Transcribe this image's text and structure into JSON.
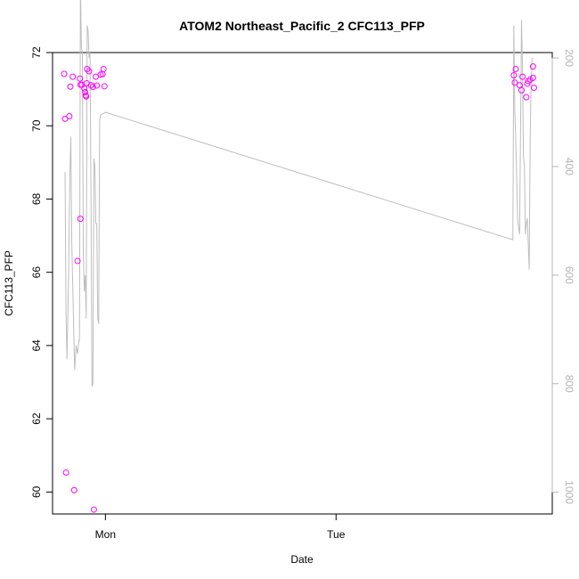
{
  "chart_data": {
    "type": "scatter",
    "title": "ATOM2 Northeast_Pacific_2 CFC113_PFP",
    "xlabel": "Date",
    "ylabel": "CFC113_PFP",
    "x_unit": "days since Sunday 00:00",
    "xlim": [
      0.7708,
      2.9375
    ],
    "ylim": [
      59.4,
      72.0
    ],
    "x_ticks": [
      {
        "value": 1.0,
        "label": "Mon"
      },
      {
        "value": 2.0,
        "label": "Tue"
      }
    ],
    "y_ticks": [
      60,
      62,
      64,
      66,
      68,
      70,
      72
    ],
    "secondary_axis": {
      "side": "right",
      "color": "#b4b4b4",
      "reversed": true,
      "ylim": [
        1040,
        190
      ],
      "ticks": [
        200,
        400,
        600,
        800,
        1000
      ]
    },
    "grid": false,
    "series": [
      {
        "kind": "points",
        "color": "#ff00ff",
        "marker": "open-circle",
        "points": [
          [
            0.8208,
            71.42
          ],
          [
            0.825,
            70.19
          ],
          [
            0.8292,
            60.53
          ],
          [
            0.8437,
            70.26
          ],
          [
            0.8479,
            71.07
          ],
          [
            0.8583,
            71.34
          ],
          [
            0.8646,
            60.05
          ],
          [
            0.8792,
            66.31
          ],
          [
            0.8917,
            67.46
          ],
          [
            0.8896,
            71.29
          ],
          [
            0.8917,
            71.12
          ],
          [
            0.8979,
            71.12
          ],
          [
            0.9083,
            71.02
          ],
          [
            0.9125,
            70.92
          ],
          [
            0.9146,
            70.83
          ],
          [
            0.9167,
            70.8
          ],
          [
            0.9187,
            71.16
          ],
          [
            0.9208,
            71.55
          ],
          [
            0.9292,
            71.49
          ],
          [
            0.9375,
            71.11
          ],
          [
            0.9458,
            71.06
          ],
          [
            0.95,
            59.52
          ],
          [
            0.9583,
            71.34
          ],
          [
            0.9625,
            71.1
          ],
          [
            0.9792,
            71.4
          ],
          [
            0.9875,
            71.41
          ],
          [
            0.9917,
            71.55
          ],
          [
            0.9958,
            71.08
          ],
          [
            2.7708,
            71.38
          ],
          [
            2.775,
            71.18
          ],
          [
            2.7792,
            71.55
          ],
          [
            2.7958,
            71.11
          ],
          [
            2.8042,
            70.97
          ],
          [
            2.8083,
            71.34
          ],
          [
            2.825,
            70.78
          ],
          [
            2.8292,
            71.15
          ],
          [
            2.8333,
            71.22
          ],
          [
            2.8417,
            71.26
          ],
          [
            2.8542,
            71.31
          ],
          [
            2.8542,
            71.62
          ],
          [
            2.8583,
            71.04
          ]
        ]
      },
      {
        "kind": "line",
        "color": "#bebebe",
        "axis": "secondary",
        "points": [
          [
            0.825,
            410
          ],
          [
            0.8292,
            670
          ],
          [
            0.8333,
            755
          ],
          [
            0.8396,
            620
          ],
          [
            0.8458,
            420
          ],
          [
            0.85,
            345
          ],
          [
            0.8542,
            540
          ],
          [
            0.8604,
            660
          ],
          [
            0.8667,
            775
          ],
          [
            0.8729,
            730
          ],
          [
            0.8792,
            745
          ],
          [
            0.8854,
            720
          ],
          [
            0.8875,
            720
          ],
          [
            0.8917,
            60
          ],
          [
            0.8958,
            180
          ],
          [
            0.9,
            190
          ],
          [
            0.9042,
            560
          ],
          [
            0.9083,
            630
          ],
          [
            0.9125,
            600
          ],
          [
            0.9167,
            680
          ],
          [
            0.9208,
            140
          ],
          [
            0.925,
            150
          ],
          [
            0.9292,
            200
          ],
          [
            0.9333,
            190
          ],
          [
            0.9375,
            450
          ],
          [
            0.9417,
            805
          ],
          [
            0.9458,
            800
          ],
          [
            0.95,
            385
          ],
          [
            0.9542,
            400
          ],
          [
            0.9583,
            505
          ],
          [
            0.9625,
            505
          ],
          [
            0.9667,
            680
          ],
          [
            0.9708,
            690
          ],
          [
            0.975,
            315
          ],
          [
            0.9792,
            305
          ],
          [
            1.0,
            300
          ],
          [
            2.7667,
            535
          ],
          [
            2.7708,
            140
          ],
          [
            2.775,
            300
          ],
          [
            2.7792,
            350
          ],
          [
            2.7875,
            500
          ],
          [
            2.7958,
            525
          ],
          [
            2.8042,
            130
          ],
          [
            2.8083,
            220
          ],
          [
            2.8125,
            380
          ],
          [
            2.8167,
            400
          ],
          [
            2.8208,
            525
          ],
          [
            2.825,
            505
          ],
          [
            2.8292,
            495
          ],
          [
            2.8375,
            590
          ],
          [
            2.8417,
            350
          ],
          [
            2.8458,
            240
          ],
          [
            2.85,
            200
          ]
        ]
      }
    ]
  }
}
